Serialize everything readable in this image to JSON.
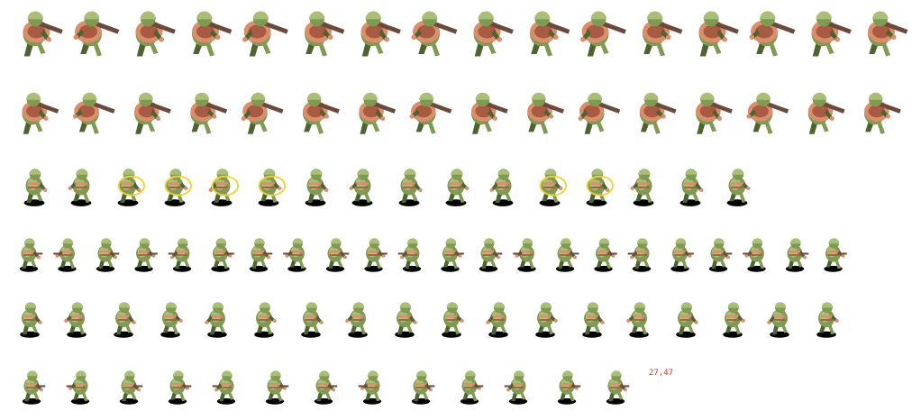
{
  "sheet": {
    "frame_label": "27,47",
    "palette": {
      "olive": "#7f9a52",
      "olive_light": "#a9bf78",
      "olive_dark": "#4e6332",
      "flesh": "#d98f6b",
      "flesh_dark": "#a85a43",
      "rifle": "#6b4a3b",
      "shadow": "#000000",
      "slash": "#f2d23a"
    },
    "rows": [
      {
        "name": "carry-bazooka-walk",
        "frames": 16
      },
      {
        "name": "carry-bazooka-walk-b",
        "frames": 16
      },
      {
        "name": "melee-slash-attack",
        "frames": 16
      },
      {
        "name": "rifle-walk-run",
        "frames": 22
      },
      {
        "name": "grenade-throw-knife",
        "frames": 18
      },
      {
        "name": "knife-run",
        "frames": 13
      }
    ]
  }
}
